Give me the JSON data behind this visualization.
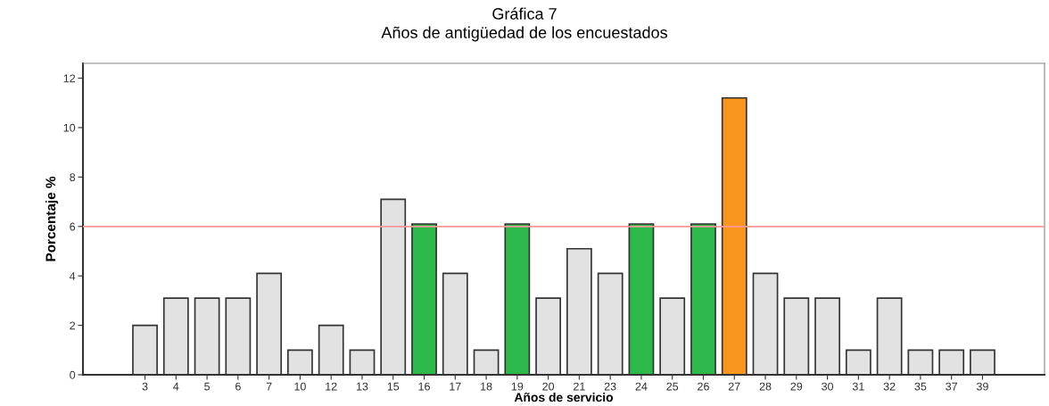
{
  "chart_data": {
    "type": "bar",
    "title": "Gráfica 7",
    "subtitle": "Años de antigüedad de los encuestados",
    "xlabel": "Años de servicio",
    "ylabel": "Porcentaje %",
    "categories": [
      "3",
      "4",
      "5",
      "6",
      "7",
      "10",
      "12",
      "13",
      "15",
      "16",
      "17",
      "18",
      "19",
      "20",
      "21",
      "23",
      "24",
      "25",
      "26",
      "27",
      "28",
      "29",
      "30",
      "31",
      "32",
      "35",
      "37",
      "39"
    ],
    "values": [
      2.0,
      3.1,
      3.1,
      3.1,
      4.1,
      1.0,
      2.0,
      1.0,
      7.1,
      6.1,
      4.1,
      1.0,
      6.1,
      3.1,
      5.1,
      4.1,
      6.1,
      3.1,
      6.1,
      11.2,
      4.1,
      3.1,
      3.1,
      1.0,
      3.1,
      1.0,
      1.0,
      1.0
    ],
    "colors": [
      "#e2e2e2",
      "#e2e2e2",
      "#e2e2e2",
      "#e2e2e2",
      "#e2e2e2",
      "#e2e2e2",
      "#e2e2e2",
      "#e2e2e2",
      "#e2e2e2",
      "#2db84a",
      "#e2e2e2",
      "#e2e2e2",
      "#2db84a",
      "#e2e2e2",
      "#e2e2e2",
      "#e2e2e2",
      "#2db84a",
      "#e2e2e2",
      "#2db84a",
      "#f7951d",
      "#e2e2e2",
      "#e2e2e2",
      "#e2e2e2",
      "#e2e2e2",
      "#e2e2e2",
      "#e2e2e2",
      "#e2e2e2",
      "#e2e2e2"
    ],
    "ylim": [
      0,
      12.6
    ],
    "yticks": [
      0,
      2,
      4,
      6,
      8,
      10,
      12
    ],
    "ref_lines": [
      {
        "axis": "y",
        "value": 6,
        "color": "#ff9999"
      }
    ],
    "grid": false,
    "legend": false
  }
}
